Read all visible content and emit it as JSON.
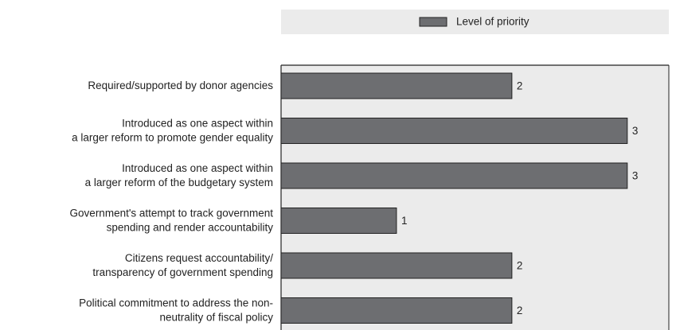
{
  "chart_data": {
    "type": "hbar",
    "categories": [
      [
        "Required/supported by donor agencies"
      ],
      [
        "Introduced as one aspect within",
        "a larger reform to promote gender equality"
      ],
      [
        "Introduced as one aspect within",
        "a larger reform of the budgetary system"
      ],
      [
        "Government's attempt to track government",
        "spending and render accountability"
      ],
      [
        "Citizens request accountability/",
        "transparency of government spending"
      ],
      [
        "Political commitment to address the non-",
        "neutrality of fiscal policy"
      ]
    ],
    "series": [
      {
        "name": "Level of priority",
        "color": "#6d6e71",
        "values": [
          2,
          3,
          3,
          1,
          2,
          2
        ]
      }
    ],
    "xlim": [
      0,
      3.36
    ]
  }
}
